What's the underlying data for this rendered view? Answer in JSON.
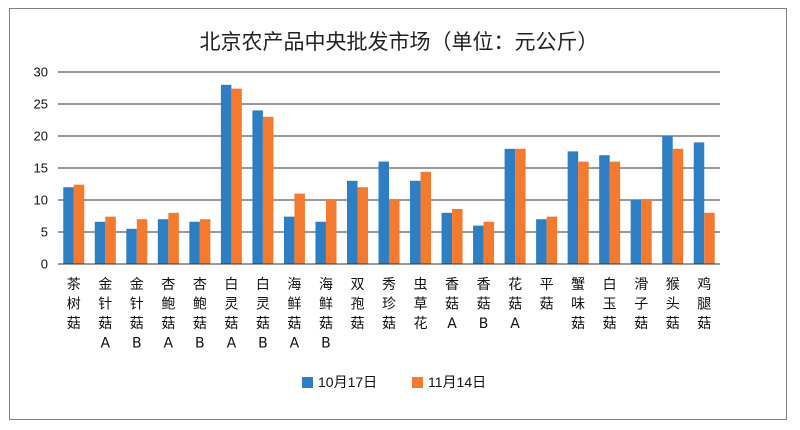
{
  "chart_data": {
    "type": "bar",
    "title": "北京农产品中央批发市场（单位：元公斤）",
    "xlabel": "",
    "ylabel": "",
    "ylim": [
      0,
      30
    ],
    "yticks": [
      0,
      5,
      10,
      15,
      20,
      25,
      30
    ],
    "grid": true,
    "legend": "bottom",
    "categories": [
      "茶树菇",
      "金针菇A",
      "金针菇B",
      "杏鲍菇A",
      "杏鲍菇B",
      "白灵菇A",
      "白灵菇B",
      "海鲜菇A",
      "海鲜菇B",
      "双孢菇",
      "秀珍菇",
      "虫草花",
      "香菇A",
      "香菇B",
      "花菇A",
      "平菇",
      "蟹味菇",
      "白玉菇",
      "滑子菇",
      "猴头菇",
      "鸡腿菇"
    ],
    "category_lines": [
      [
        "茶",
        "树",
        "菇"
      ],
      [
        "金",
        "针",
        "菇",
        "A"
      ],
      [
        "金",
        "针",
        "菇",
        "B"
      ],
      [
        "杏",
        "鲍",
        "菇",
        "A"
      ],
      [
        "杏",
        "鲍",
        "菇",
        "B"
      ],
      [
        "白",
        "灵",
        "菇",
        "A"
      ],
      [
        "白",
        "灵",
        "菇",
        "B"
      ],
      [
        "海",
        "鲜",
        "菇",
        "A"
      ],
      [
        "海",
        "鲜",
        "菇",
        "B"
      ],
      [
        "双",
        "孢",
        "菇"
      ],
      [
        "秀",
        "珍",
        "菇"
      ],
      [
        "虫",
        "草",
        "花"
      ],
      [
        "香",
        "菇",
        "A"
      ],
      [
        "香",
        "菇",
        "B"
      ],
      [
        "花",
        "菇",
        "A"
      ],
      [
        "平",
        "菇"
      ],
      [
        "蟹",
        "味",
        "菇"
      ],
      [
        "白",
        "玉",
        "菇"
      ],
      [
        "滑",
        "子",
        "菇"
      ],
      [
        "猴",
        "头",
        "菇"
      ],
      [
        "鸡",
        "腿",
        "菇"
      ]
    ],
    "series": [
      {
        "name": "10月17日",
        "color": "#2E7EC3",
        "values": [
          12,
          6.6,
          5.5,
          7,
          6.6,
          28,
          24,
          7.4,
          6.6,
          13,
          16,
          13,
          8,
          6,
          18,
          7,
          17.6,
          17,
          10,
          20,
          19
        ]
      },
      {
        "name": "11月14日",
        "color": "#F47A30",
        "values": [
          12.4,
          7.4,
          7,
          8,
          7,
          27.4,
          23,
          11,
          10,
          12,
          10,
          14.4,
          8.6,
          6.6,
          18,
          7.4,
          16,
          16,
          10,
          18,
          8
        ]
      }
    ]
  }
}
